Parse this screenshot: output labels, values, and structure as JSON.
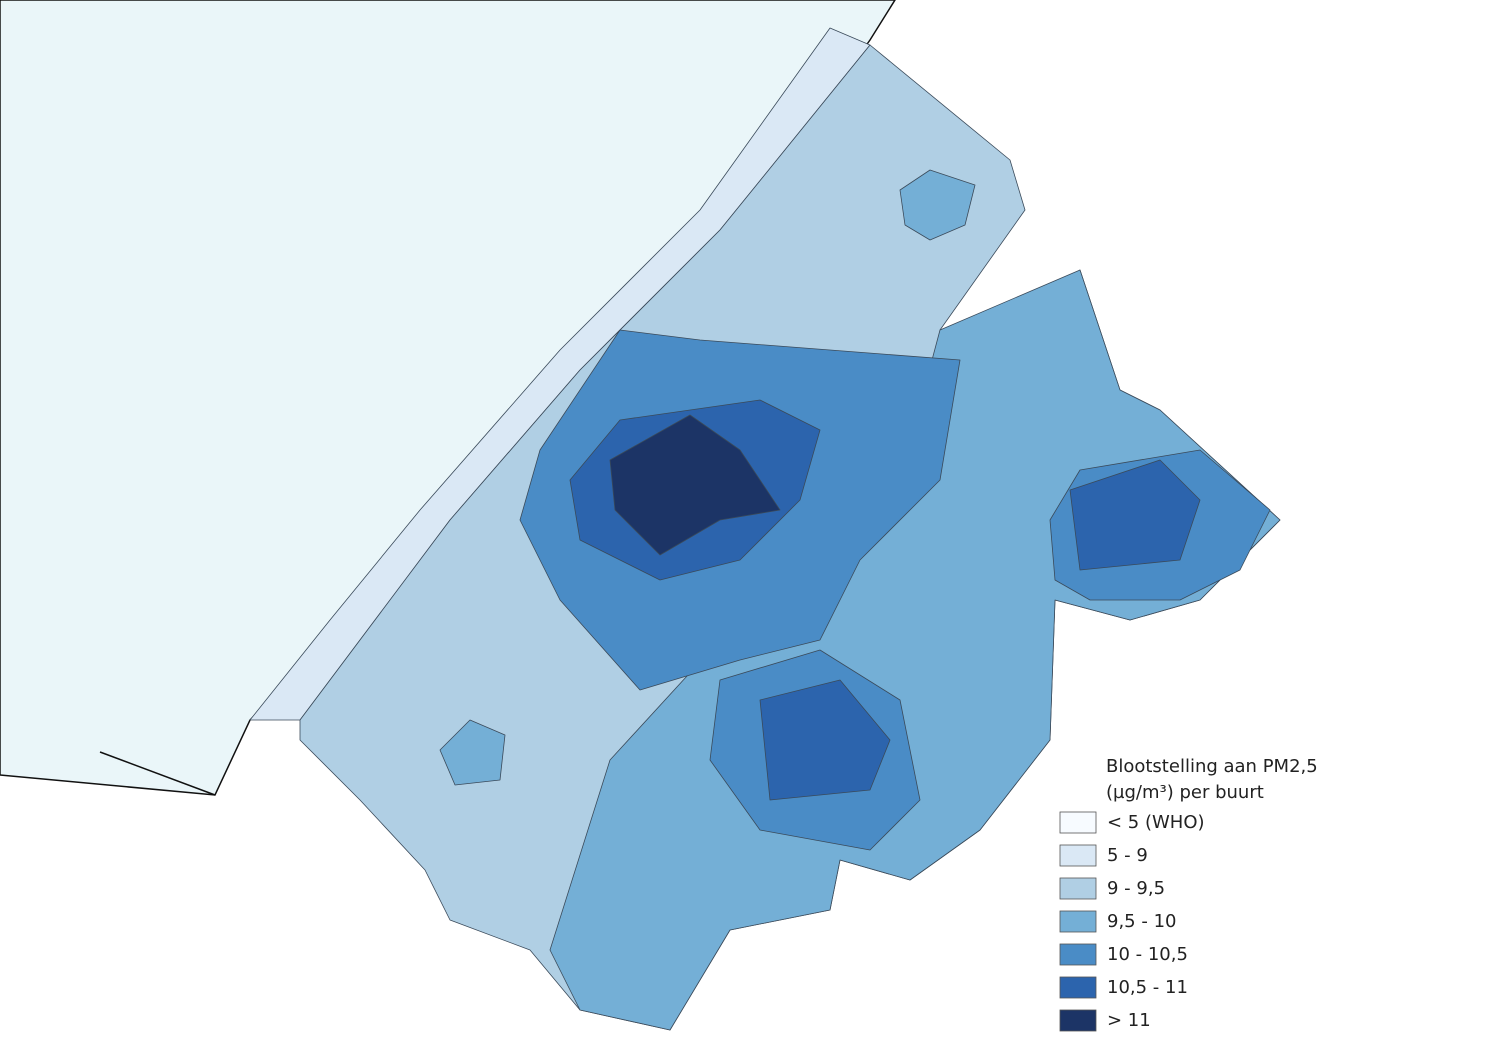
{
  "legend": {
    "title_lines": [
      "Blootstelling aan PM2,5",
      "(µg/m³) per buurt"
    ],
    "items": [
      {
        "label": "< 5 (WHO)",
        "color": "#f7fbff"
      },
      {
        "label": "5 - 9",
        "color": "#dae8f5"
      },
      {
        "label": "9 - 9,5",
        "color": "#b0cfe4"
      },
      {
        "label": "9,5 - 10",
        "color": "#74afd6"
      },
      {
        "label": "10 - 10,5",
        "color": "#4a8cc6"
      },
      {
        "label": "10,5 - 11",
        "color": "#2c64ad"
      },
      {
        "label": "> 11",
        "color": "#1c3466"
      }
    ]
  }
}
